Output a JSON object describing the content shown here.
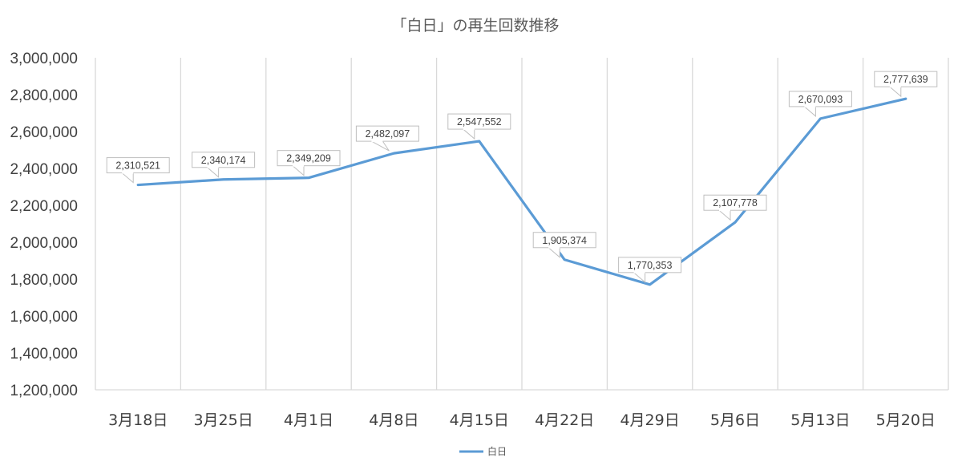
{
  "chart_data": {
    "type": "line",
    "title": "「白日」の再生回数推移",
    "xlabel": "",
    "ylabel": "",
    "categories": [
      "3月18日",
      "3月25日",
      "4月1日",
      "4月8日",
      "4月15日",
      "4月22日",
      "4月29日",
      "5月6日",
      "5月13日",
      "5月20日"
    ],
    "series": [
      {
        "name": "白日",
        "values": [
          2310521,
          2340174,
          2349209,
          2482097,
          2547552,
          1905374,
          1770353,
          2107778,
          2670093,
          2777639
        ],
        "labels": [
          "2,310,521",
          "2,340,174",
          "2,349,209",
          "2,482,097",
          "2,547,552",
          "1,905,374",
          "1,770,353",
          "2,107,778",
          "2,670,093",
          "2,777,639"
        ],
        "color": "#5b9bd5"
      }
    ],
    "ylim": [
      1200000,
      3000000
    ],
    "yticks": [
      "1,200,000",
      "1,400,000",
      "1,600,000",
      "1,800,000",
      "2,000,000",
      "2,200,000",
      "2,400,000",
      "2,600,000",
      "2,800,000",
      "3,000,000"
    ],
    "grid": "vertical",
    "legend": "bottom"
  }
}
